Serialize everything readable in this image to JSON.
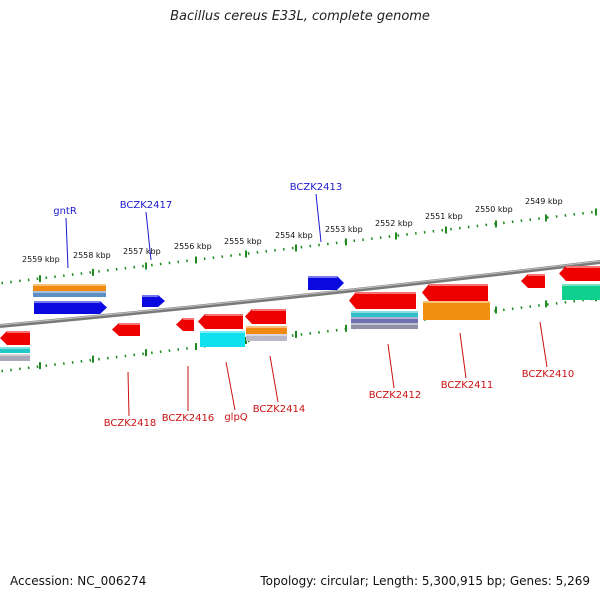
{
  "title": "Bacillus cereus E33L, complete genome",
  "footer": {
    "accession": "Accession: NC_006274",
    "summary": "Topology: circular; Length: 5,300,915 bp; Genes: 5,269"
  },
  "colors": {
    "forward_label": "#1a1ad0",
    "reverse_label": "#cc1111",
    "backbone": "#8a8a8a",
    "scale": "#1f8a1f"
  },
  "scale_labels": [
    "2559 kbp",
    "2558 kbp",
    "2557 kbp",
    "2556 kbp",
    "2555 kbp",
    "2554 kbp",
    "2553 kbp",
    "2552 kbp",
    "2551 kbp",
    "2550 kbp",
    "2549 kbp"
  ],
  "gene_labels": [
    {
      "name": "gntR",
      "strand": "forward"
    },
    {
      "name": "BCZK2417",
      "strand": "forward"
    },
    {
      "name": "BCZK2413",
      "strand": "forward"
    },
    {
      "name": "BCZK2418",
      "strand": "reverse"
    },
    {
      "name": "BCZK2416",
      "strand": "reverse"
    },
    {
      "name": "glpQ",
      "strand": "reverse"
    },
    {
      "name": "BCZK2414",
      "strand": "reverse"
    },
    {
      "name": "BCZK2412",
      "strand": "reverse"
    },
    {
      "name": "BCZK2411",
      "strand": "reverse"
    },
    {
      "name": "BCZK2410",
      "strand": "reverse"
    }
  ]
}
